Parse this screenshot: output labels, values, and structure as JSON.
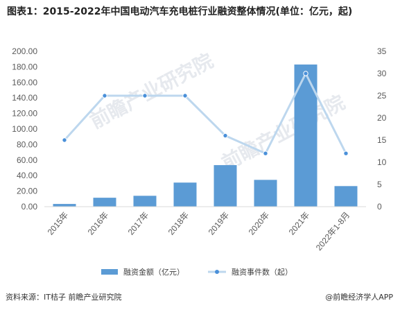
{
  "title": "图表1：2015-2022年中国电动汽车充电桩行业融资整体情况(单位：亿元，起)",
  "watermark": "前瞻产业研究院",
  "footer": {
    "source": "资料来源：IT桔子 前瞻产业研究院",
    "brand": "@前瞻经济学人APP"
  },
  "colors": {
    "bar": "#5b9bd5",
    "line": "#bdd7ee",
    "marker": "#4a90d9"
  },
  "chart_data": {
    "type": "bar",
    "categories": [
      "2015年",
      "2016年",
      "2017年",
      "2018年",
      "2019年",
      "2020年",
      "2021年",
      "2022年1-8月"
    ],
    "series": [
      {
        "name": "融资金额（亿元）",
        "type": "bar",
        "axis": "left",
        "values": [
          3.5,
          11.5,
          14.0,
          31.0,
          53.5,
          34.5,
          183.0,
          26.5
        ]
      },
      {
        "name": "融资事件数（起）",
        "type": "line",
        "axis": "right",
        "values": [
          15,
          25,
          25,
          25,
          16,
          12,
          30,
          12
        ]
      }
    ],
    "y_left": {
      "min": 0,
      "max": 200,
      "step": 20,
      "ticks": [
        "0.00",
        "20.00",
        "40.00",
        "60.00",
        "80.00",
        "100.00",
        "120.00",
        "140.00",
        "160.00",
        "180.00",
        "200.00"
      ]
    },
    "y_right": {
      "min": 0,
      "max": 35,
      "step": 5,
      "ticks": [
        "0",
        "5",
        "10",
        "15",
        "20",
        "25",
        "30",
        "35"
      ]
    },
    "legend_position": "bottom",
    "grid": false
  }
}
